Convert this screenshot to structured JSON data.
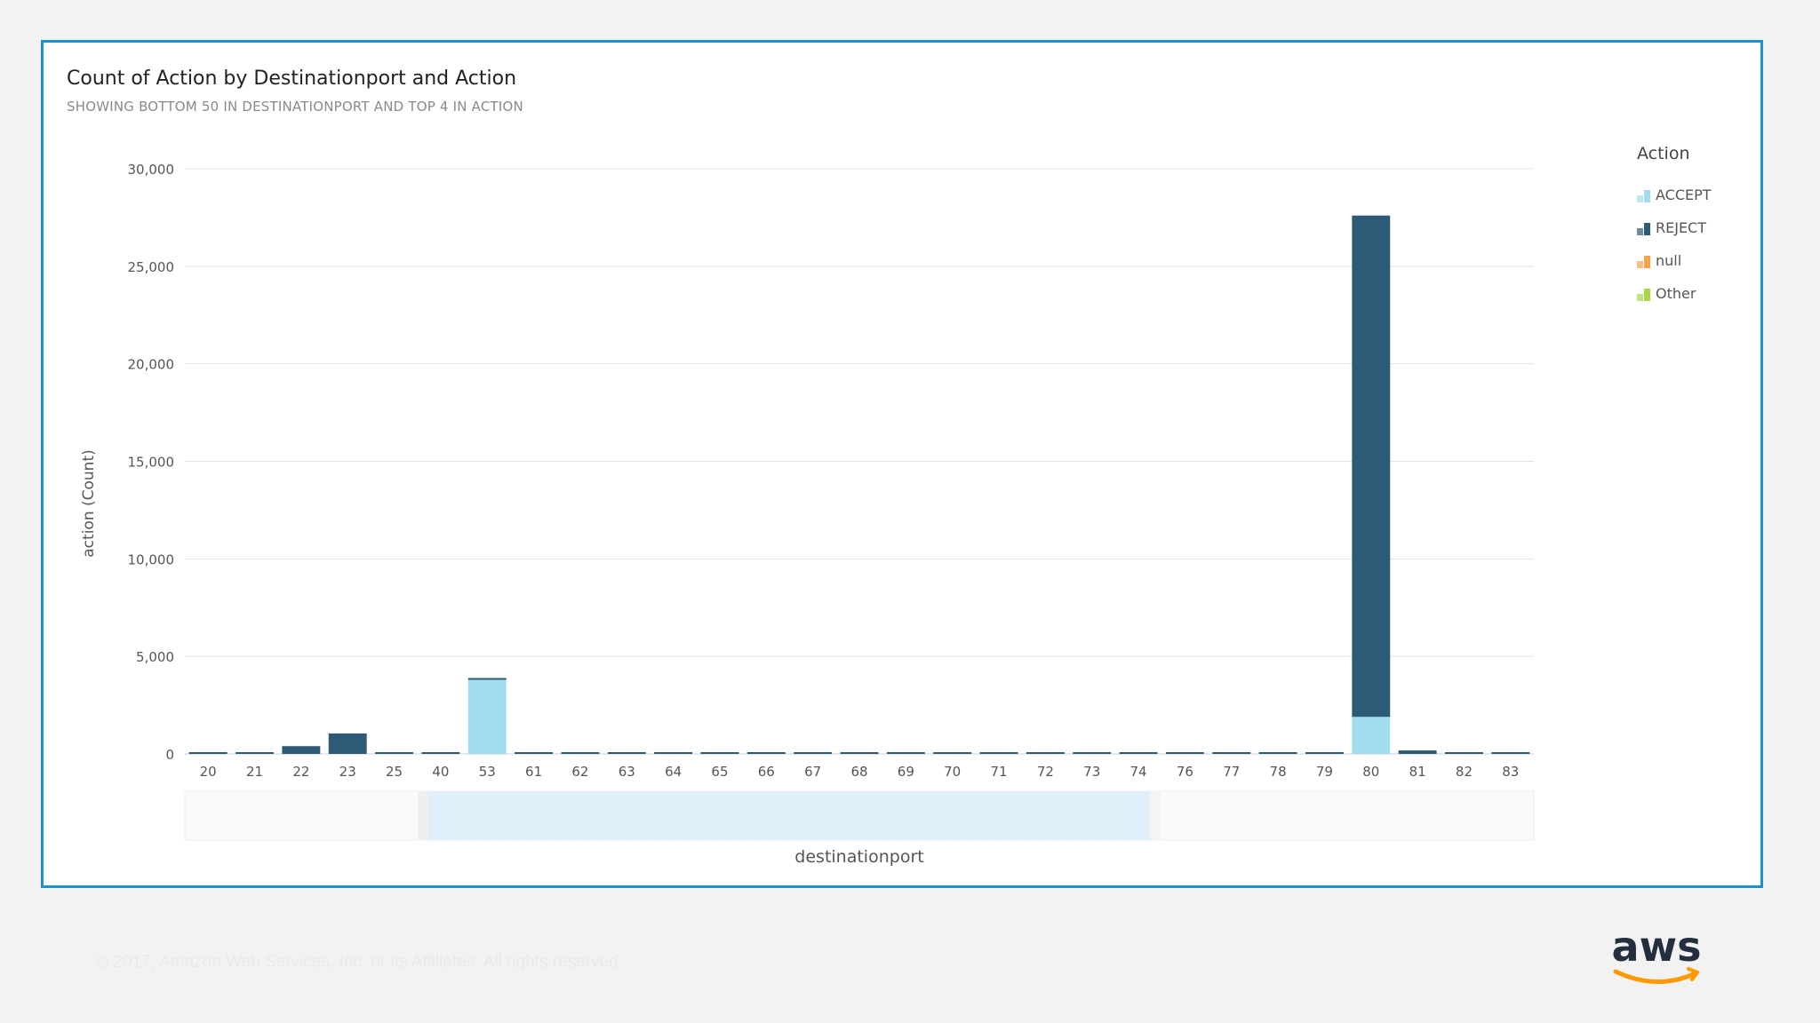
{
  "title": "Count of Action by Destinationport and Action",
  "subtitle": "SHOWING BOTTOM 50 IN DESTINATIONPORT AND TOP 4 IN ACTION",
  "legend": {
    "title": "Action",
    "items": [
      {
        "label": "ACCEPT",
        "color": "#a3dcee"
      },
      {
        "label": "REJECT",
        "color": "#2d5a76"
      },
      {
        "label": "null",
        "color": "#f7a24b"
      },
      {
        "label": "Other",
        "color": "#a8d84a"
      }
    ]
  },
  "footer": {
    "copyright": "© 2017, Amazon Web Services, Inc. or its Affiliates. All rights reserved."
  },
  "logo": {
    "text": "aws"
  },
  "colors": {
    "accent_border": "#1f8fd0",
    "accept": "#a3dcee",
    "reject": "#2d5a76",
    "range_selector": "#dff0fb"
  },
  "chart_data": {
    "type": "bar",
    "stacked": true,
    "xlabel": "destinationport",
    "ylabel": "action (Count)",
    "ylim": [
      0,
      30000
    ],
    "yticks": [
      0,
      5000,
      10000,
      15000,
      20000,
      25000,
      30000
    ],
    "ytick_labels": [
      "0",
      "5,000",
      "10,000",
      "15,000",
      "20,000",
      "25,000",
      "30,000"
    ],
    "grid": true,
    "legend_position": "right",
    "categories": [
      "20",
      "21",
      "22",
      "23",
      "25",
      "40",
      "53",
      "61",
      "62",
      "63",
      "64",
      "65",
      "66",
      "67",
      "68",
      "69",
      "70",
      "71",
      "72",
      "73",
      "74",
      "76",
      "77",
      "78",
      "79",
      "80",
      "81",
      "82",
      "83"
    ],
    "series": [
      {
        "name": "ACCEPT",
        "values": [
          0,
          0,
          0,
          0,
          0,
          0,
          3800,
          0,
          0,
          0,
          0,
          0,
          0,
          0,
          0,
          0,
          0,
          0,
          0,
          0,
          0,
          0,
          0,
          0,
          0,
          1900,
          0,
          0,
          0
        ]
      },
      {
        "name": "REJECT",
        "values": [
          60,
          60,
          400,
          1050,
          60,
          60,
          50,
          60,
          60,
          60,
          60,
          60,
          60,
          60,
          60,
          60,
          60,
          60,
          60,
          60,
          60,
          60,
          60,
          60,
          60,
          25700,
          180,
          60,
          60
        ]
      },
      {
        "name": "null",
        "values": [
          0,
          0,
          0,
          0,
          0,
          0,
          0,
          0,
          0,
          0,
          0,
          0,
          0,
          0,
          0,
          0,
          0,
          0,
          0,
          0,
          0,
          0,
          0,
          0,
          0,
          0,
          0,
          0,
          0
        ]
      },
      {
        "name": "Other",
        "values": [
          0,
          0,
          0,
          0,
          0,
          0,
          0,
          0,
          0,
          0,
          0,
          0,
          0,
          0,
          0,
          0,
          0,
          0,
          0,
          0,
          0,
          0,
          0,
          0,
          0,
          0,
          0,
          0,
          0
        ]
      }
    ]
  }
}
